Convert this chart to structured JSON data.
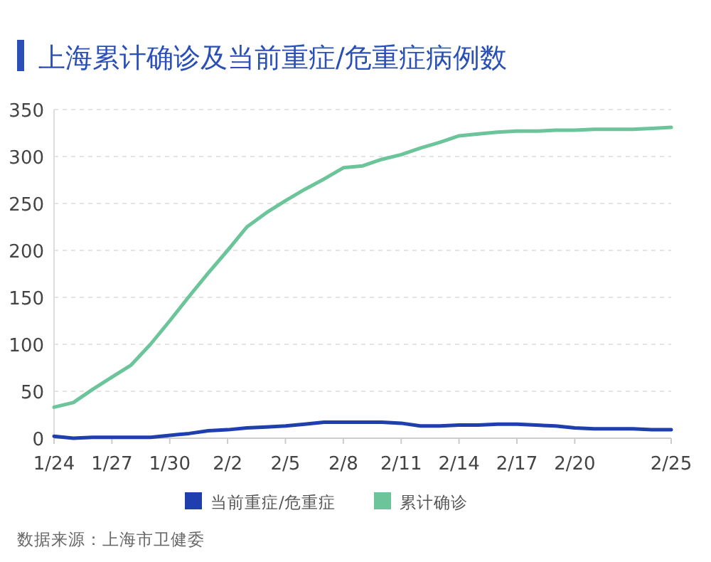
{
  "chart_data": {
    "type": "line",
    "title": "上海累计确诊及当前重症/危重症病例数",
    "categories": [
      "1/24",
      null,
      null,
      "1/27",
      null,
      null,
      "1/30",
      null,
      null,
      "2/2",
      null,
      null,
      "2/5",
      null,
      null,
      "2/8",
      null,
      null,
      "2/11",
      null,
      null,
      "2/14",
      null,
      null,
      "2/17",
      null,
      null,
      "2/20",
      null,
      null,
      null,
      null,
      "2/25"
    ],
    "series": [
      {
        "name": "当前重症/危重症",
        "color": "#1f3fae",
        "values": [
          2,
          0,
          1,
          1,
          1,
          1,
          3,
          5,
          8,
          9,
          11,
          12,
          13,
          15,
          17,
          17,
          17,
          17,
          16,
          13,
          13,
          14,
          14,
          15,
          15,
          14,
          13,
          11,
          10,
          10,
          10,
          9,
          9
        ]
      },
      {
        "name": "累计确诊",
        "color": "#6cc59a",
        "values": [
          33,
          38,
          52,
          65,
          78,
          100,
          125,
          151,
          176,
          200,
          225,
          240,
          253,
          265,
          276,
          288,
          290,
          297,
          302,
          309,
          315,
          322,
          324,
          326,
          327,
          327,
          328,
          328,
          329,
          329,
          329,
          330,
          331
        ]
      }
    ],
    "ylim": [
      0,
      350
    ],
    "yticks": [
      0,
      50,
      100,
      150,
      200,
      250,
      300,
      350
    ],
    "grid": "y",
    "legend": "bottom",
    "marker": "none",
    "line_style": "solid",
    "annotations": [
      "数据来源：上海市卫健委"
    ]
  }
}
